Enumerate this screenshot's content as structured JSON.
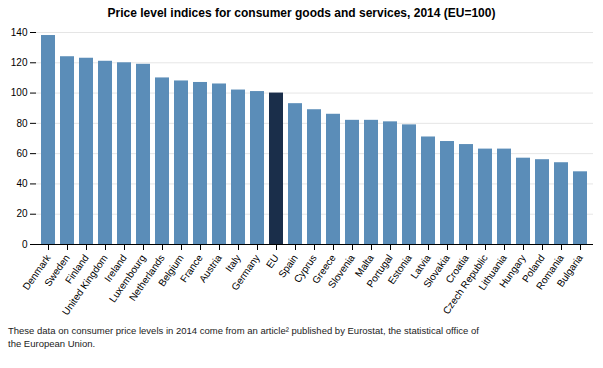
{
  "chart_data": {
    "type": "bar",
    "title": "Price level indices for consumer goods and services, 2014 (EU=100)",
    "categories": [
      "Denmark",
      "Sweden",
      "Finland",
      "United Kingdom",
      "Ireland",
      "Luxembourg",
      "Netherlands",
      "Belgium",
      "France",
      "Austria",
      "Italy",
      "Germany",
      "EU",
      "Spain",
      "Cyprus",
      "Greece",
      "Slovenia",
      "Malta",
      "Portugal",
      "Estonia",
      "Latvia",
      "Slovakia",
      "Croatia",
      "Czech Republic",
      "Lithuania",
      "Hungary",
      "Poland",
      "Romania",
      "Bulgaria"
    ],
    "values": [
      138,
      124,
      123,
      121,
      120,
      119,
      110,
      108,
      107,
      106,
      102,
      101,
      100,
      93,
      89,
      86,
      82,
      82,
      81,
      79,
      71,
      68,
      66,
      63,
      63,
      57,
      56,
      54,
      48
    ],
    "colors": [
      "#5b8db8",
      "#5b8db8",
      "#5b8db8",
      "#5b8db8",
      "#5b8db8",
      "#5b8db8",
      "#5b8db8",
      "#5b8db8",
      "#5b8db8",
      "#5b8db8",
      "#5b8db8",
      "#5b8db8",
      "#1a2e4a",
      "#5b8db8",
      "#5b8db8",
      "#5b8db8",
      "#5b8db8",
      "#5b8db8",
      "#5b8db8",
      "#5b8db8",
      "#5b8db8",
      "#5b8db8",
      "#5b8db8",
      "#5b8db8",
      "#5b8db8",
      "#5b8db8",
      "#5b8db8",
      "#5b8db8",
      "#5b8db8"
    ],
    "ylim": [
      0,
      140
    ],
    "yticks": [
      0,
      20,
      40,
      60,
      80,
      100,
      120,
      140
    ],
    "grid": true,
    "caption": "These data on consumer price levels in 2014 come from an article² published by Eurostat, the statistical office of\nthe European Union."
  }
}
